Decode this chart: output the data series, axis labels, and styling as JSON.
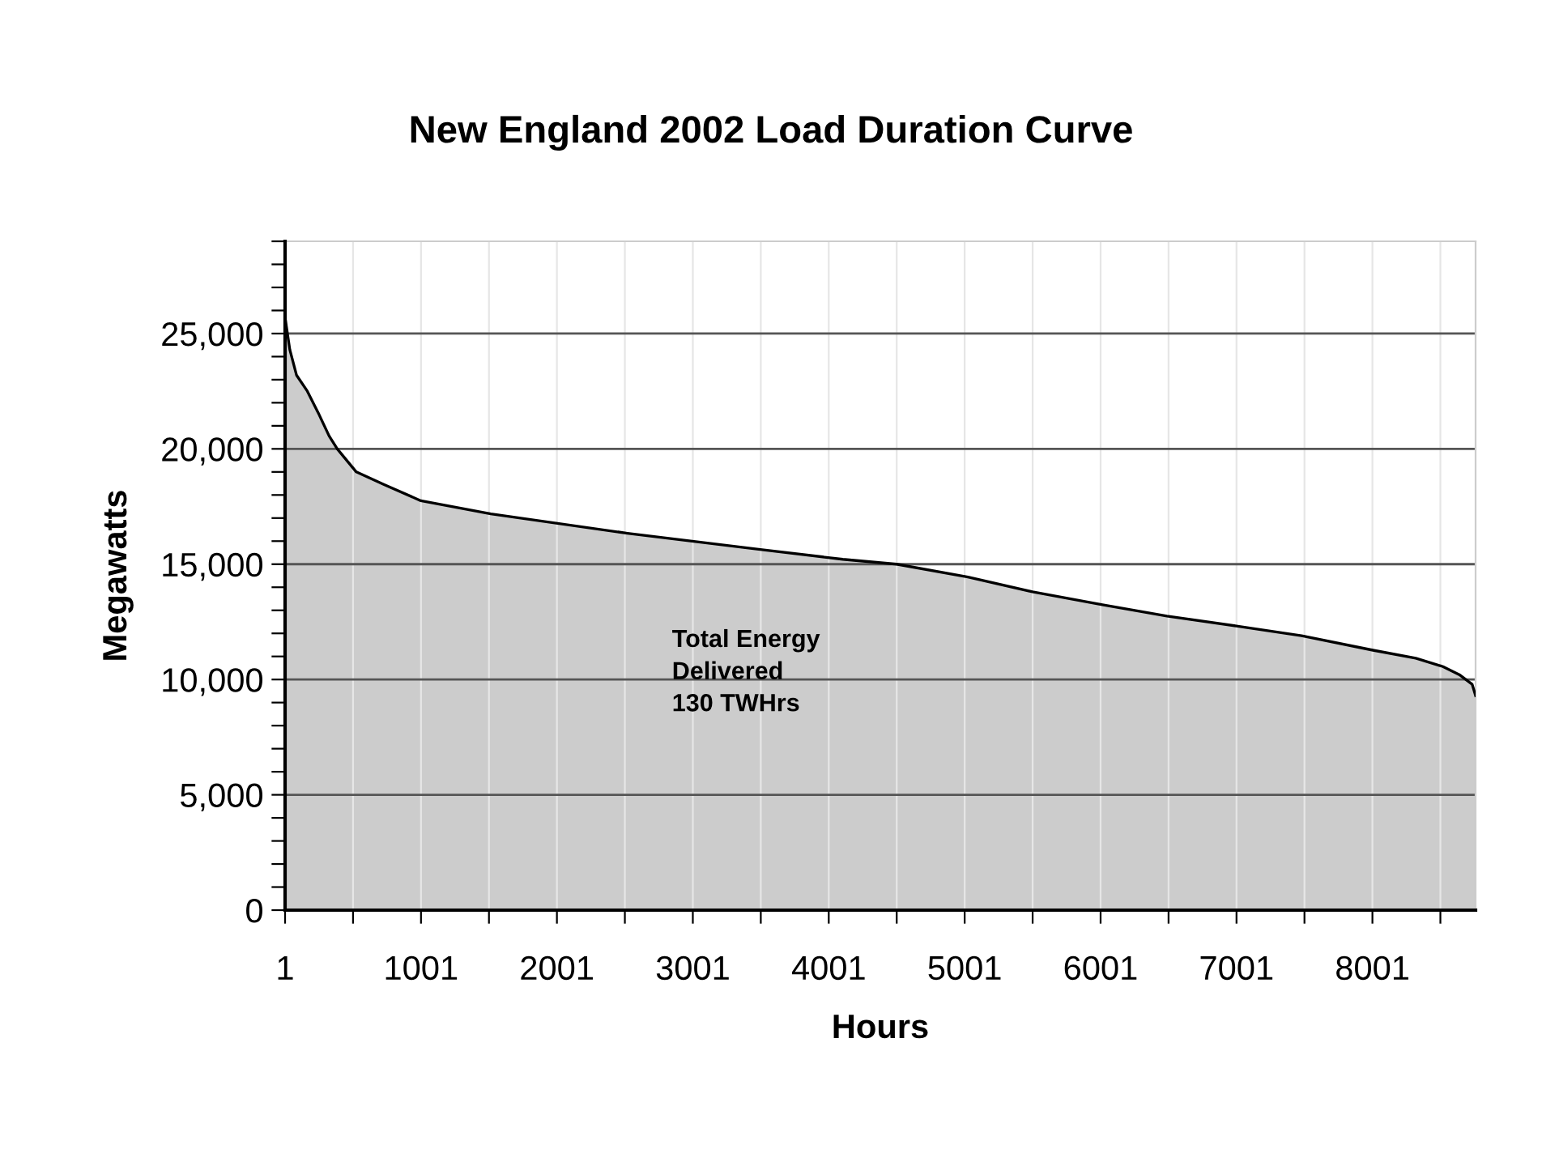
{
  "chart_data": {
    "type": "area",
    "title": "New England 2002 Load Duration Curve",
    "xlabel": "Hours",
    "ylabel": "Megawatts",
    "x": [
      1,
      36,
      85,
      165,
      250,
      325,
      385,
      525,
      730,
      1000,
      1515,
      2520,
      3510,
      4105,
      4500,
      5025,
      5500,
      6015,
      6490,
      7000,
      7480,
      8005,
      8320,
      8520,
      8640,
      8735,
      8760
    ],
    "series": [
      {
        "color": "#cccccc",
        "values": [
          25700,
          24300,
          23200,
          22500,
          21500,
          20560,
          20000,
          19000,
          18450,
          17750,
          17180,
          16340,
          15630,
          15210,
          15000,
          14440,
          13800,
          13240,
          12750,
          12320,
          11900,
          11270,
          10920,
          10560,
          10210,
          9790,
          9300
        ]
      }
    ],
    "xlim": [
      1,
      8760
    ],
    "xticks": [
      1,
      {
        "value": 501,
        "label": null
      },
      1001,
      {
        "value": 1501,
        "label": null
      },
      2001,
      {
        "value": 2501,
        "label": null
      },
      3001,
      {
        "value": 3501,
        "label": null
      },
      4001,
      {
        "value": 4501,
        "label": null
      },
      5001,
      {
        "value": 5501,
        "label": null
      },
      6001,
      {
        "value": 6501,
        "label": null
      },
      7001,
      {
        "value": 7501,
        "label": null
      },
      8001,
      {
        "value": 8501,
        "label": null
      }
    ],
    "ylim": [
      0,
      29000
    ],
    "yticks": [
      0,
      {
        "value": 1000,
        "label": null
      },
      {
        "value": 2000,
        "label": null
      },
      {
        "value": 3000,
        "label": null
      },
      {
        "value": 4000,
        "label": null
      },
      {
        "value": 5000,
        "label": "5,000"
      },
      {
        "value": 6000,
        "label": null
      },
      {
        "value": 7000,
        "label": null
      },
      {
        "value": 8000,
        "label": null
      },
      {
        "value": 9000,
        "label": null
      },
      {
        "value": 10000,
        "label": "10,000"
      },
      {
        "value": 11000,
        "label": null
      },
      {
        "value": 12000,
        "label": null
      },
      {
        "value": 13000,
        "label": null
      },
      {
        "value": 14000,
        "label": null
      },
      {
        "value": 15000,
        "label": "15,000"
      },
      {
        "value": 16000,
        "label": null
      },
      {
        "value": 17000,
        "label": null
      },
      {
        "value": 18000,
        "label": null
      },
      {
        "value": 19000,
        "label": null
      },
      {
        "value": 20000,
        "label": "20,000"
      },
      {
        "value": 21000,
        "label": null
      },
      {
        "value": 22000,
        "label": null
      },
      {
        "value": 23000,
        "label": null
      },
      {
        "value": 24000,
        "label": null
      },
      {
        "value": 25000,
        "label": "25,000"
      },
      {
        "value": 26000,
        "label": null
      },
      {
        "value": 27000,
        "label": null
      },
      {
        "value": 28000,
        "label": null
      },
      {
        "value": 29000,
        "label": null
      }
    ],
    "grid": true,
    "annotations": [
      "Total Energy\nDelivered\n130 TWHrs"
    ]
  }
}
